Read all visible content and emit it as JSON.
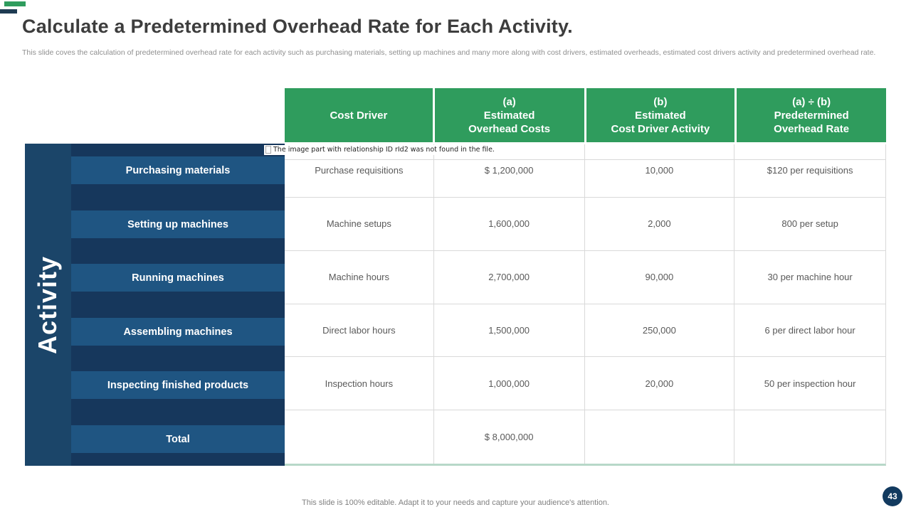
{
  "slide": {
    "title": "Calculate a Predetermined Overhead Rate for Each Activity.",
    "subtitle": "This slide coves the calculation of predetermined overhead rate for each activity such as purchasing materials, setting up machines and many more along with cost drivers, estimated overheads, estimated cost drivers activity and predetermined overhead rate.",
    "footer": "This slide is 100% editable. Adapt it to your needs and capture your audience's attention.",
    "page_number": "43"
  },
  "error_note": "The image part with relationship ID rId2 was not found in the file.",
  "sidebar": {
    "axis_label": "Activity",
    "items": [
      "Purchasing materials",
      "Setting up machines",
      "Running machines",
      "Assembling machines",
      "Inspecting finished products",
      "Total"
    ]
  },
  "table": {
    "headers": [
      "Cost Driver",
      "(a)\nEstimated\nOverhead Costs",
      "(b)\nEstimated\nCost Driver Activity",
      "(a)  ÷  (b)\nPredetermined\nOverhead Rate"
    ],
    "rows": [
      [
        "Purchase requisitions",
        "$ 1,200,000",
        "10,000",
        "$120 per requisitions"
      ],
      [
        "Machine setups",
        "1,600,000",
        "2,000",
        "800 per setup"
      ],
      [
        "Machine hours",
        "2,700,000",
        "90,000",
        "30 per machine hour"
      ],
      [
        "Direct labor hours",
        "1,500,000",
        "250,000",
        "6 per direct labor hour"
      ],
      [
        "Inspection hours",
        "1,000,000",
        "20,000",
        "50 per inspection hour"
      ],
      [
        "",
        "$ 8,000,000",
        "",
        ""
      ]
    ]
  },
  "colors": {
    "header_green": "#2F9C5D",
    "sidebar_base": "#1B4569",
    "sidebar_strip": "#16375C",
    "sidebar_item": "#1F5582",
    "accent_navy": "#1E3B52",
    "page_badge": "#123A5F",
    "table_border": "#D9D9D9",
    "table_bottom_border": "#B7D8C8"
  }
}
